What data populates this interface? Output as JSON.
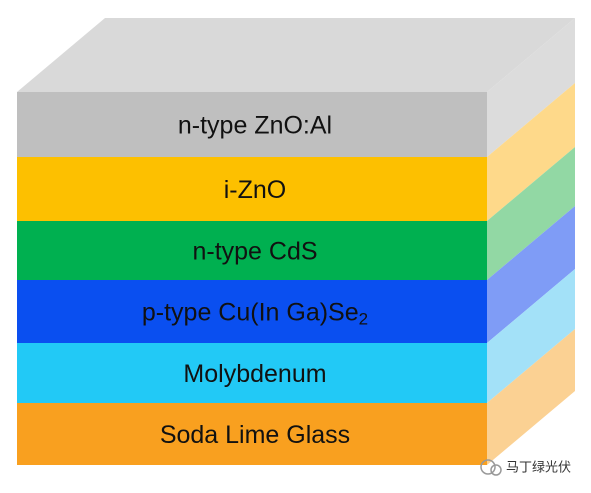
{
  "layers": [
    {
      "label": "n-type ZnO:Al"
    },
    {
      "label": "i-ZnO"
    },
    {
      "label": "n-type CdS"
    },
    {
      "label": "p-type Cu(In Ga)Se",
      "subscript": "2"
    },
    {
      "label": "Molybdenum"
    },
    {
      "label": "Soda Lime Glass"
    }
  ],
  "watermark": "马丁绿光伏"
}
